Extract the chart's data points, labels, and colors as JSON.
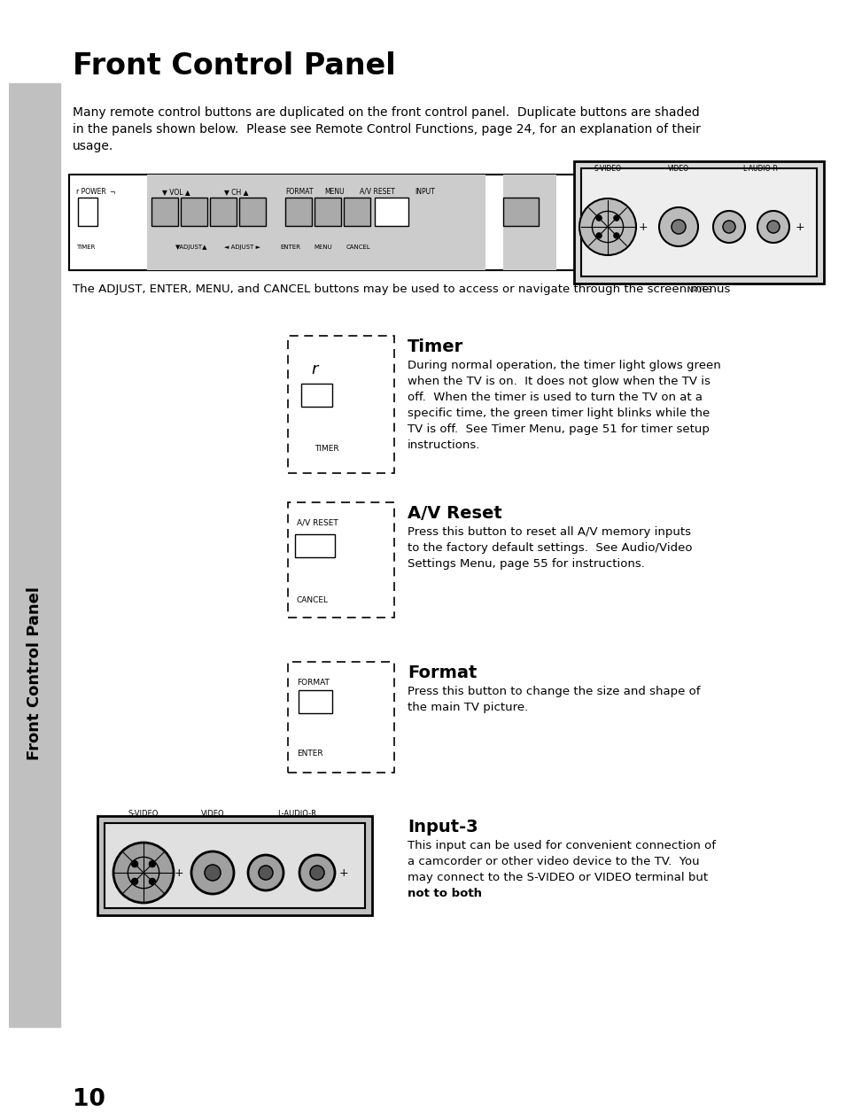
{
  "title": "Front Control Panel",
  "bg_color": "#ffffff",
  "page_number": "10",
  "sidebar_text": "Front Control Panel",
  "intro_text": "Many remote control buttons are duplicated on the front control panel.  Duplicate buttons are shaded\nin the panels shown below.  Please see Remote Control Functions, page 24, for an explanation of their\nusage.",
  "caption_text": "The ADJUST, ENTER, MENU, and CANCEL buttons may be used to access or navigate through the screen menus",
  "timer_heading": "Timer",
  "timer_body": [
    "During normal operation, the timer light glows green",
    "when the TV is on.  It does not glow when the TV is",
    "off.  When the timer is used to turn the TV on at a",
    "specific time, the green timer light blinks while the",
    "TV is off.  See Timer Menu, page 51 for timer setup",
    "instructions."
  ],
  "av_heading": "A/V Reset",
  "av_body": [
    "Press this button to reset all A/V memory inputs",
    "to the factory default settings.  See Audio/Video",
    "Settings Menu, page 55 for instructions."
  ],
  "fmt_heading": "Format",
  "fmt_body": [
    "Press this button to change the size and shape of",
    "the main TV picture."
  ],
  "inp_heading": "Input-3",
  "inp_body": [
    "This input can be used for convenient connection of",
    "a camcorder or other video device to the TV.  You",
    "may connect to the S-VIDEO or VIDEO terminal but"
  ],
  "inp_bold": "not to both",
  "inp_end": "."
}
